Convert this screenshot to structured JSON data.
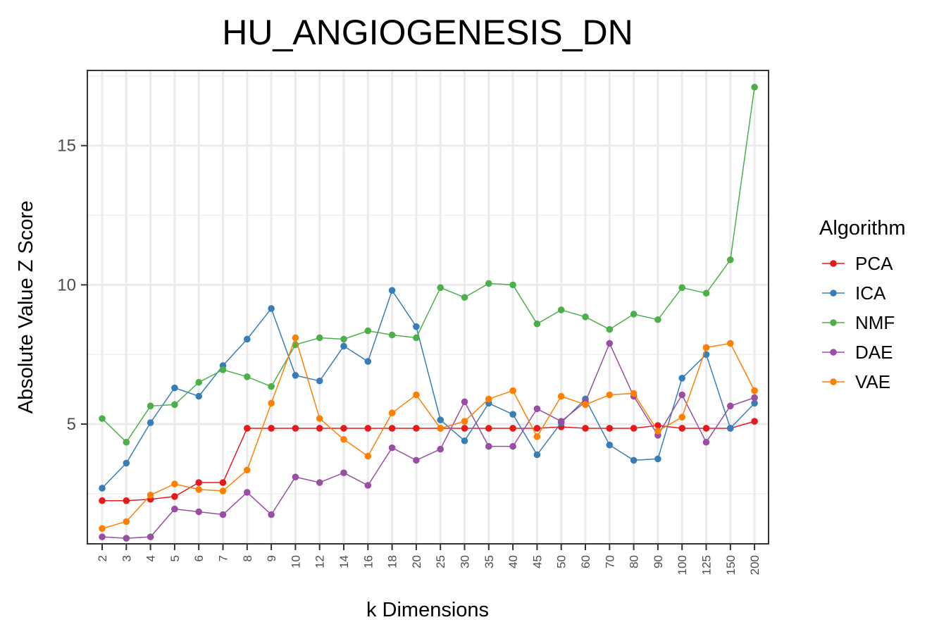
{
  "chart_data": {
    "type": "line",
    "title": "HU_ANGIOGENESIS_DN",
    "xlabel": "k Dimensions",
    "ylabel": "Absolute Value Z Score",
    "categories": [
      "2",
      "3",
      "4",
      "5",
      "6",
      "7",
      "8",
      "9",
      "10",
      "12",
      "14",
      "16",
      "18",
      "20",
      "25",
      "30",
      "35",
      "40",
      "45",
      "50",
      "60",
      "70",
      "80",
      "90",
      "100",
      "125",
      "150",
      "200"
    ],
    "ylim": [
      0.7,
      17.7
    ],
    "yticks": [
      5,
      10,
      15
    ],
    "grid": true,
    "legend": {
      "title": "Algorithm",
      "position": "right"
    },
    "series": [
      {
        "name": "PCA",
        "color": "#e41a1c",
        "values": [
          2.25,
          2.25,
          2.3,
          2.4,
          2.9,
          2.9,
          4.85,
          4.85,
          4.85,
          4.85,
          4.85,
          4.85,
          4.85,
          4.85,
          4.85,
          4.85,
          4.85,
          4.85,
          4.85,
          4.9,
          4.85,
          4.85,
          4.85,
          4.95,
          4.85,
          4.85,
          4.85,
          5.1
        ]
      },
      {
        "name": "ICA",
        "color": "#377eb8",
        "values": [
          2.7,
          3.6,
          5.05,
          6.3,
          6.0,
          7.1,
          8.05,
          9.15,
          6.75,
          6.55,
          7.8,
          7.25,
          9.8,
          8.5,
          5.15,
          4.4,
          5.75,
          5.35,
          3.9,
          5.05,
          5.9,
          4.25,
          3.7,
          3.75,
          6.65,
          7.5,
          4.85,
          5.75
        ]
      },
      {
        "name": "NMF",
        "color": "#4daf4a",
        "values": [
          5.2,
          4.35,
          5.65,
          5.7,
          6.5,
          6.95,
          6.7,
          6.35,
          7.85,
          8.1,
          8.05,
          8.35,
          8.2,
          8.1,
          9.9,
          9.55,
          10.05,
          10.0,
          8.6,
          9.1,
          8.85,
          8.4,
          8.95,
          8.75,
          9.9,
          9.7,
          10.9,
          17.1
        ]
      },
      {
        "name": "DAE",
        "color": "#984ea3",
        "values": [
          0.95,
          0.9,
          0.95,
          1.95,
          1.85,
          1.75,
          2.55,
          1.75,
          3.1,
          2.9,
          3.25,
          2.8,
          4.15,
          3.7,
          4.1,
          5.8,
          4.2,
          4.2,
          5.55,
          5.1,
          5.8,
          7.9,
          6.0,
          4.6,
          6.05,
          4.35,
          5.65,
          5.95
        ]
      },
      {
        "name": "VAE",
        "color": "#ff7f00",
        "values": [
          1.25,
          1.5,
          2.45,
          2.85,
          2.65,
          2.6,
          3.35,
          5.75,
          8.1,
          5.2,
          4.45,
          3.85,
          5.4,
          6.05,
          4.85,
          5.1,
          5.9,
          6.2,
          4.55,
          6.0,
          5.7,
          6.05,
          6.1,
          4.75,
          5.25,
          7.75,
          7.9,
          6.2
        ]
      }
    ]
  }
}
